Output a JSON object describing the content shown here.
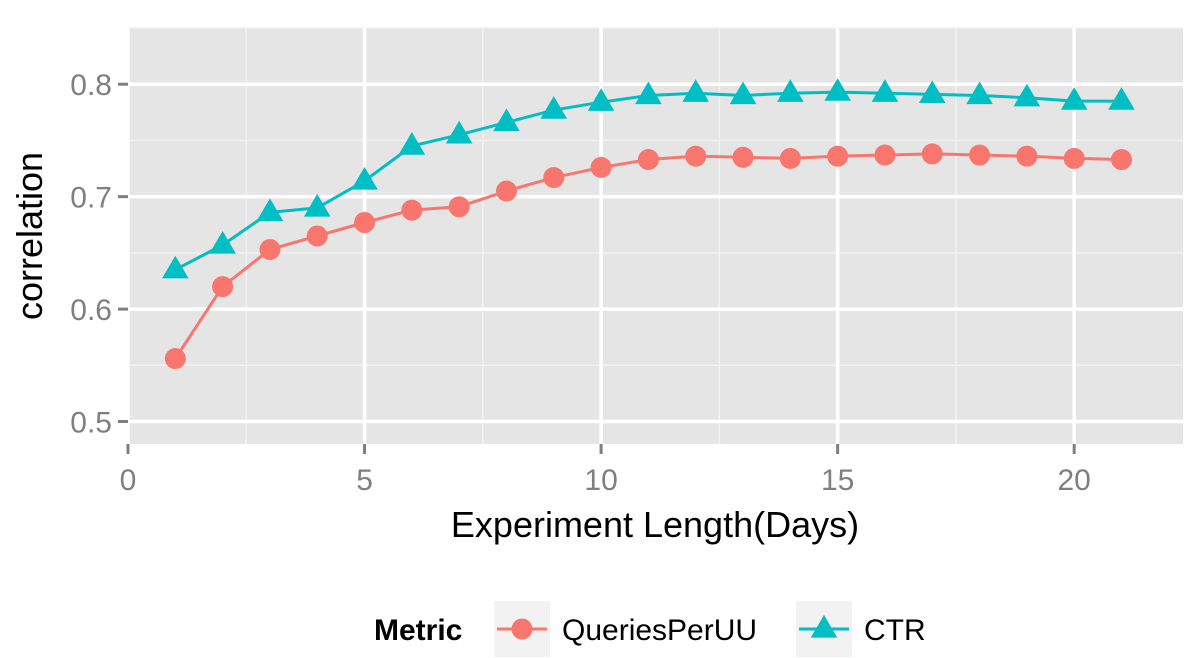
{
  "chart_data": {
    "type": "line",
    "title": "",
    "xlabel": "Experiment Length(Days)",
    "ylabel": "correlation",
    "xlim": [
      0,
      22.3
    ],
    "ylim": [
      0.48,
      0.85
    ],
    "x_ticks": [
      0,
      5,
      10,
      15,
      20
    ],
    "x_tick_labels": [
      "0",
      "5",
      "10",
      "15",
      "20"
    ],
    "y_ticks": [
      0.5,
      0.6,
      0.7,
      0.8
    ],
    "y_tick_labels": [
      "0.5",
      "0.6",
      "0.7",
      "0.8"
    ],
    "grid": true,
    "legend_position": "bottom",
    "legend_title": "Metric",
    "x": [
      1,
      2,
      3,
      4,
      5,
      6,
      7,
      8,
      9,
      10,
      11,
      12,
      13,
      14,
      15,
      16,
      17,
      18,
      19,
      20,
      21
    ],
    "series": [
      {
        "name": "QueriesPerUU",
        "marker": "circle",
        "color": "#F8766D",
        "values": [
          0.556,
          0.62,
          0.653,
          0.665,
          0.677,
          0.688,
          0.691,
          0.705,
          0.717,
          0.726,
          0.733,
          0.736,
          0.735,
          0.734,
          0.736,
          0.737,
          0.738,
          0.737,
          0.736,
          0.734,
          0.733
        ]
      },
      {
        "name": "CTR",
        "marker": "triangle",
        "color": "#00BFC4",
        "values": [
          0.635,
          0.657,
          0.686,
          0.69,
          0.714,
          0.745,
          0.755,
          0.766,
          0.777,
          0.784,
          0.79,
          0.792,
          0.79,
          0.792,
          0.793,
          0.792,
          0.791,
          0.79,
          0.788,
          0.785,
          0.785
        ]
      }
    ]
  }
}
